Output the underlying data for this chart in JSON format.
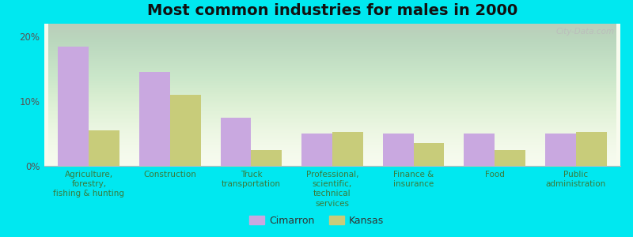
{
  "title": "Most common industries for males in 2000",
  "categories": [
    "Agriculture,\nforestry,\nfishing & hunting",
    "Construction",
    "Truck\ntransportation",
    "Professional,\nscientific,\ntechnical\nservices",
    "Finance &\ninsurance",
    "Food",
    "Public\nadministration"
  ],
  "cimarron_values": [
    18.5,
    14.5,
    7.5,
    5.0,
    5.0,
    5.0,
    5.0
  ],
  "kansas_values": [
    5.5,
    11.0,
    2.5,
    5.2,
    3.5,
    2.5,
    5.2
  ],
  "cimarron_color": "#c9a8e0",
  "kansas_color": "#c8cc7a",
  "background_outer": "#00e8f0",
  "background_inner_top": "#eef5e8",
  "background_inner_bottom": "#f8fbee",
  "ylim": [
    0,
    22
  ],
  "yticks": [
    0,
    10,
    20
  ],
  "ytick_labels": [
    "0%",
    "10%",
    "20%"
  ],
  "legend_labels": [
    "Cimarron",
    "Kansas"
  ],
  "bar_width": 0.38,
  "title_fontsize": 14,
  "axis_label_fontsize": 7.5,
  "legend_fontsize": 9,
  "watermark": "City-Data.com"
}
